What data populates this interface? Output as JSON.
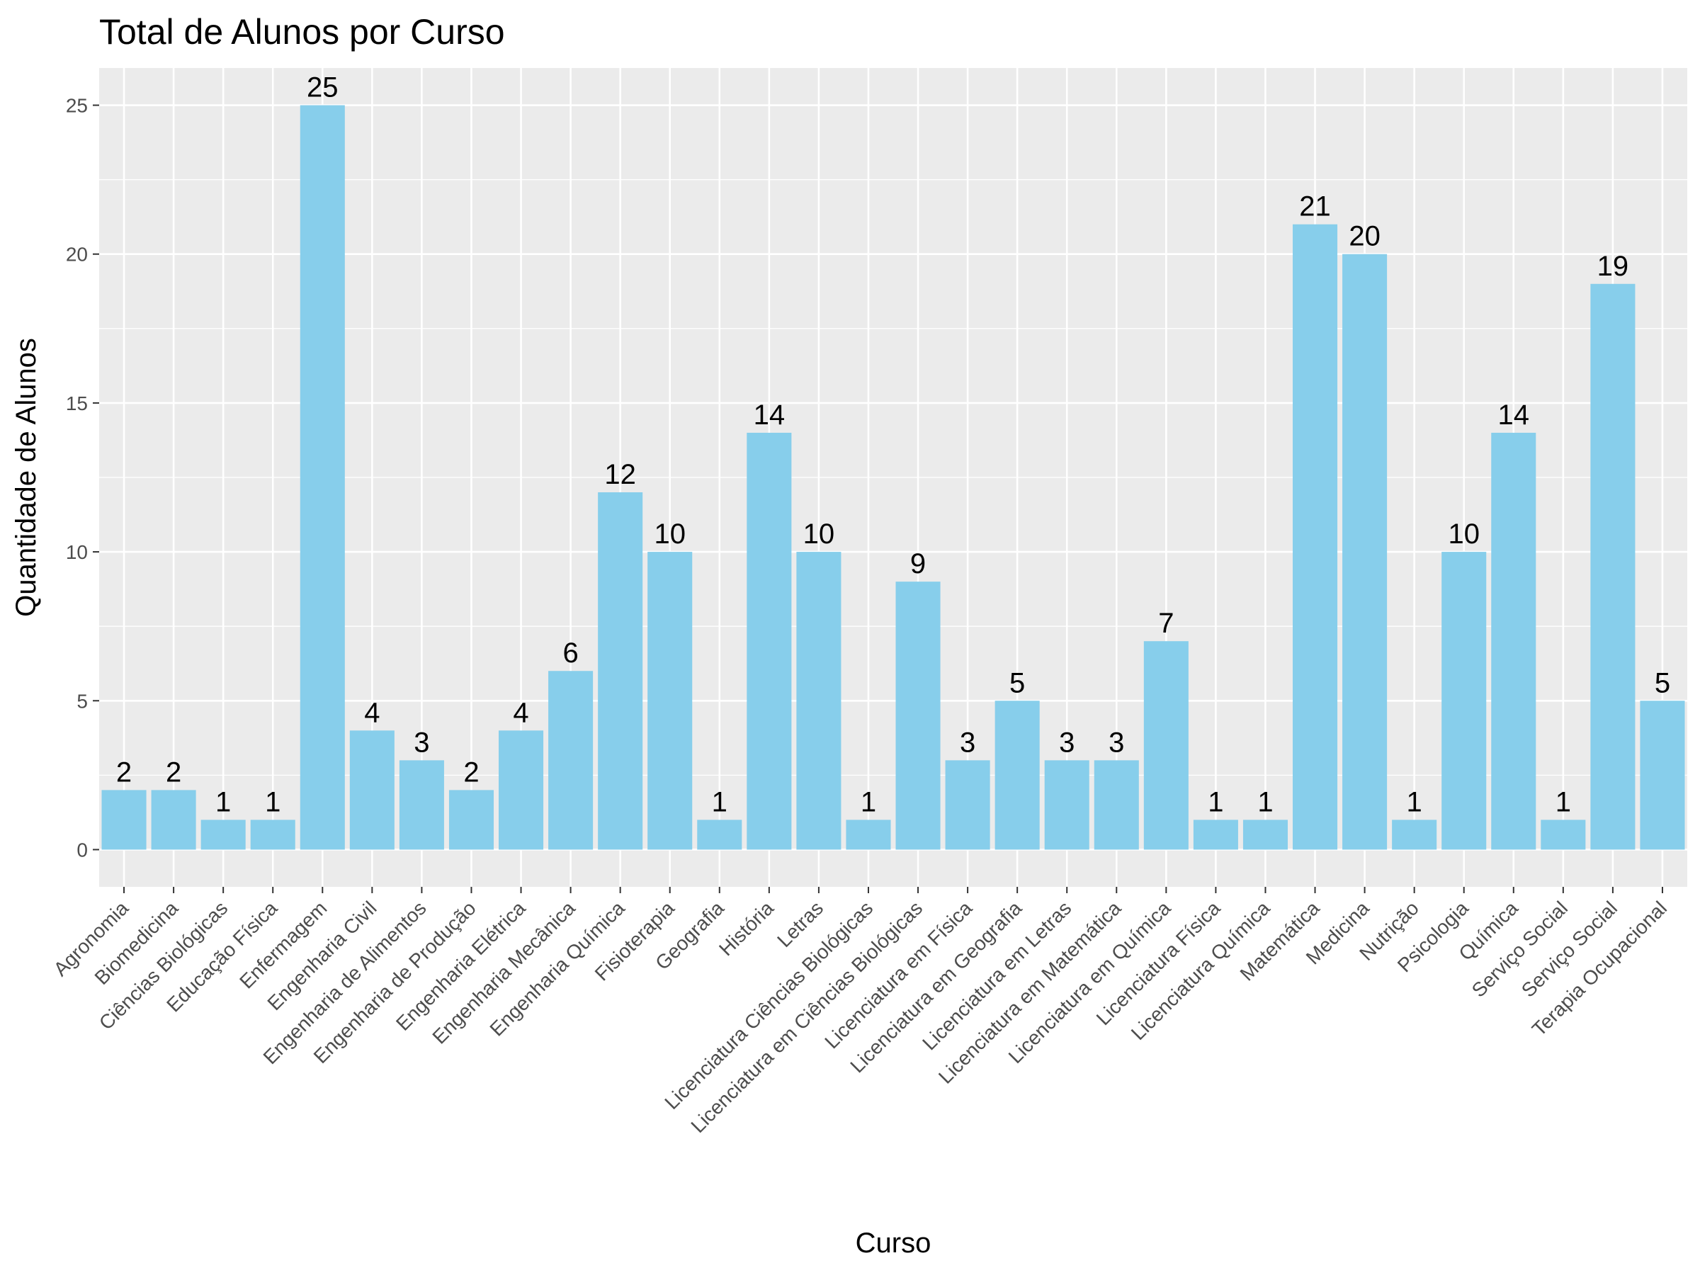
{
  "chart_data": {
    "type": "bar",
    "title": "Total de Alunos por Curso",
    "xlabel": "Curso",
    "ylabel": "Quantidade de Alunos",
    "ylim": [
      -1.25,
      26.25
    ],
    "yticks": [
      0,
      5,
      10,
      15,
      20,
      25
    ],
    "grid": true,
    "legend": "none",
    "categories": [
      "Agronomia",
      "Biomedicina",
      "Ciências Biológicas",
      "Educação Física",
      "Enfermagem",
      "Engenharia Civil",
      "Engenharia de Alimentos",
      "Engenharia de Produção",
      "Engenharia Elétrica",
      "Engenharia Mecânica",
      "Engenharia Química",
      "Fisioterapia",
      "Geografia",
      "História",
      "Letras",
      "Licenciatura Ciências Biológicas",
      "Licenciatura em Ciências Biológicas",
      "Licenciatura em Física",
      "Licenciatura em Geografia",
      "Licenciatura em Letras",
      "Licenciatura em Matemática",
      "Licenciatura em Química",
      "Licenciatura Física",
      "Licenciatura Química",
      "Matemática",
      "Medicina",
      "Nutrição",
      "Psicologia",
      "Química",
      "Serviço Social",
      "Serviço Social",
      "Terapia Ocupacional"
    ],
    "values": [
      2,
      2,
      1,
      1,
      25,
      4,
      3,
      2,
      4,
      6,
      12,
      10,
      1,
      14,
      10,
      1,
      9,
      3,
      5,
      3,
      3,
      7,
      1,
      1,
      21,
      20,
      1,
      10,
      14,
      1,
      19,
      5
    ]
  },
  "colors": {
    "bar": "#87CEEB",
    "panel": "#EBEBEB",
    "grid": "#FFFFFF",
    "ticks": "#333333"
  }
}
